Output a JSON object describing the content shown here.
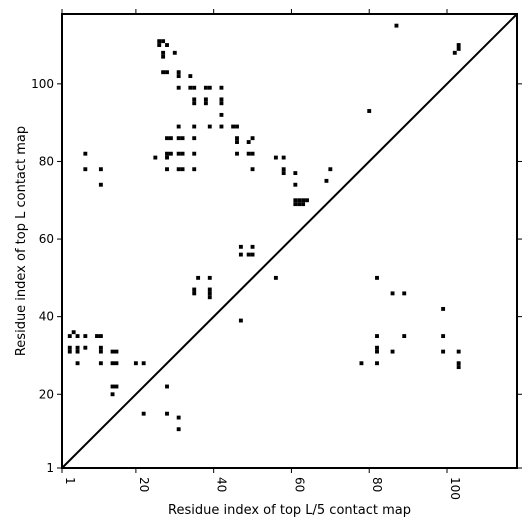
{
  "chart_data": {
    "type": "scatter",
    "title": "",
    "xlabel": "Residue index of top L/5 contact map",
    "ylabel": "Residue index of top L contact map",
    "xlim": [
      1,
      118
    ],
    "ylim": [
      1,
      118
    ],
    "xticks": [
      1,
      20,
      40,
      60,
      80,
      100
    ],
    "yticks": [
      1,
      20,
      40,
      60,
      80,
      100
    ],
    "grid": false,
    "legend": "none",
    "marker_color": "#000000",
    "diagonal": {
      "from": [
        1,
        1
      ],
      "to": [
        118,
        118
      ],
      "color": "#000000"
    },
    "series": [
      {
        "upper_triangle_points": [
          [
            26,
            111
          ],
          [
            27,
            111
          ],
          [
            28,
            110
          ],
          [
            26,
            110
          ],
          [
            27,
            108
          ],
          [
            27,
            107
          ],
          [
            30,
            108
          ],
          [
            28,
            103
          ],
          [
            27,
            103
          ],
          [
            31,
            103
          ],
          [
            31,
            102
          ],
          [
            34,
            102
          ],
          [
            31,
            99
          ],
          [
            34,
            99
          ],
          [
            35,
            99
          ],
          [
            38,
            99
          ],
          [
            39,
            99
          ],
          [
            42,
            99
          ],
          [
            35,
            96
          ],
          [
            35,
            95
          ],
          [
            38,
            96
          ],
          [
            38,
            95
          ],
          [
            42,
            96
          ],
          [
            42,
            95
          ],
          [
            42,
            92
          ],
          [
            31,
            89
          ],
          [
            35,
            89
          ],
          [
            39,
            89
          ],
          [
            42,
            89
          ],
          [
            45,
            89
          ],
          [
            46,
            89
          ],
          [
            28,
            86
          ],
          [
            29,
            86
          ],
          [
            31,
            86
          ],
          [
            32,
            86
          ],
          [
            35,
            86
          ],
          [
            46,
            86
          ],
          [
            46,
            85
          ],
          [
            49,
            85
          ],
          [
            50,
            86
          ],
          [
            28,
            82
          ],
          [
            29,
            82
          ],
          [
            31,
            82
          ],
          [
            32,
            82
          ],
          [
            35,
            82
          ],
          [
            46,
            82
          ],
          [
            49,
            82
          ],
          [
            50,
            82
          ],
          [
            28,
            81
          ],
          [
            25,
            81
          ],
          [
            7,
            82
          ],
          [
            28,
            78
          ],
          [
            31,
            78
          ],
          [
            32,
            78
          ],
          [
            35,
            78
          ],
          [
            11,
            78
          ],
          [
            7,
            78
          ],
          [
            11,
            74
          ],
          [
            50,
            78
          ],
          [
            56,
            81
          ],
          [
            58,
            81
          ],
          [
            58,
            78
          ],
          [
            58,
            77
          ],
          [
            61,
            77
          ],
          [
            61,
            74
          ],
          [
            61,
            70
          ],
          [
            62,
            70
          ],
          [
            63,
            70
          ],
          [
            64,
            70
          ],
          [
            61,
            69
          ],
          [
            62,
            69
          ],
          [
            63,
            69
          ],
          [
            70,
            78
          ],
          [
            69,
            75
          ],
          [
            80,
            93
          ],
          [
            87,
            115
          ],
          [
            102,
            108
          ],
          [
            103,
            110
          ],
          [
            103,
            109
          ]
        ]
      },
      {
        "lower_triangle_points": [
          [
            36,
            50
          ],
          [
            39,
            50
          ],
          [
            35,
            47
          ],
          [
            35,
            46
          ],
          [
            39,
            47
          ],
          [
            39,
            46
          ],
          [
            39,
            45
          ],
          [
            47,
            58
          ],
          [
            50,
            58
          ],
          [
            47,
            56
          ],
          [
            49,
            56
          ],
          [
            50,
            56
          ],
          [
            56,
            50
          ],
          [
            47,
            39
          ],
          [
            82,
            50
          ],
          [
            86,
            46
          ],
          [
            89,
            46
          ],
          [
            99,
            42
          ],
          [
            82,
            35
          ],
          [
            89,
            35
          ],
          [
            99,
            35
          ],
          [
            82,
            32
          ],
          [
            82,
            31
          ],
          [
            86,
            31
          ],
          [
            99,
            31
          ],
          [
            103,
            31
          ],
          [
            78,
            28
          ],
          [
            82,
            28
          ],
          [
            103,
            28
          ],
          [
            103,
            27
          ],
          [
            28,
            22
          ],
          [
            28,
            15
          ],
          [
            31,
            14
          ],
          [
            31,
            11
          ],
          [
            22,
            15
          ],
          [
            20,
            28
          ],
          [
            22,
            28
          ],
          [
            14,
            28
          ],
          [
            15,
            28
          ],
          [
            14,
            31
          ],
          [
            15,
            31
          ],
          [
            11,
            35
          ],
          [
            10,
            35
          ],
          [
            11,
            32
          ],
          [
            11,
            31
          ],
          [
            11,
            28
          ],
          [
            14,
            22
          ],
          [
            15,
            22
          ],
          [
            14,
            20
          ],
          [
            3,
            35
          ],
          [
            4,
            36
          ],
          [
            5,
            35
          ],
          [
            7,
            35
          ],
          [
            3,
            32
          ],
          [
            3,
            31
          ],
          [
            5,
            32
          ],
          [
            5,
            31
          ],
          [
            7,
            32
          ],
          [
            5,
            28
          ]
        ]
      }
    ]
  }
}
